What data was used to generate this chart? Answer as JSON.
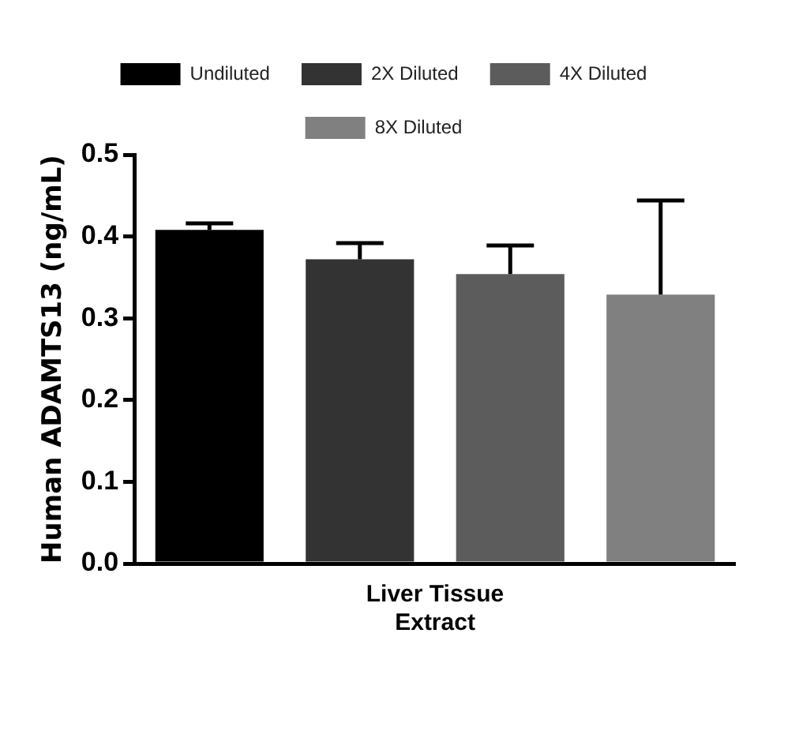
{
  "chart_data": {
    "type": "bar",
    "ylabel": "Human ADAMTS13 (ng/mL)",
    "categories": [
      "Liver Tissue Extract"
    ],
    "series": [
      {
        "name": "Undiluted",
        "color": "#000000",
        "values": [
          0.408
        ],
        "errors": [
          [
            0.408,
            0.416
          ]
        ]
      },
      {
        "name": "2X Diluted",
        "color": "#333333",
        "values": [
          0.372
        ],
        "errors": [
          [
            0.372,
            0.392
          ]
        ]
      },
      {
        "name": "4X Diluted",
        "color": "#5c5c5c",
        "values": [
          0.354
        ],
        "errors": [
          [
            0.354,
            0.389
          ]
        ]
      },
      {
        "name": "8X Diluted",
        "color": "#808080",
        "values": [
          0.329
        ],
        "errors": [
          [
            0.329,
            0.444
          ]
        ]
      }
    ],
    "ylim": [
      0,
      0.5
    ],
    "yticks": [
      {
        "value": 0,
        "label": "0.0"
      },
      {
        "value": 0.1,
        "label": "0.1"
      },
      {
        "value": 0.2,
        "label": "0.2"
      },
      {
        "value": 0.3,
        "label": "0.3"
      },
      {
        "value": 0.4,
        "label": "0.4"
      },
      {
        "value": 0.5,
        "label": "0.5"
      }
    ],
    "grid": false,
    "legend": "top"
  }
}
